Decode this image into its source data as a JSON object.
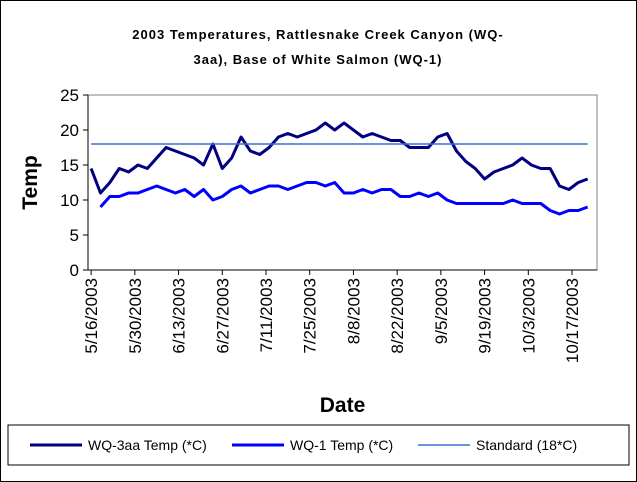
{
  "chart_data": {
    "type": "line",
    "title": "2003 Temperatures, Rattlesnake Creek Canyon (WQ-3aa), Base of White Salmon (WQ-1)",
    "x_label": "Date",
    "y_label": "Temp",
    "x": [
      "5/16/2003",
      "5/19/2003",
      "5/22/2003",
      "5/25/2003",
      "5/28/2003",
      "5/31/2003",
      "6/3/2003",
      "6/6/2003",
      "6/9/2003",
      "6/12/2003",
      "6/15/2003",
      "6/18/2003",
      "6/21/2003",
      "6/24/2003",
      "6/27/2003",
      "6/30/2003",
      "7/3/2003",
      "7/6/2003",
      "7/9/2003",
      "7/12/2003",
      "7/15/2003",
      "7/18/2003",
      "7/21/2003",
      "7/24/2003",
      "7/27/2003",
      "7/30/2003",
      "8/2/2003",
      "8/5/2003",
      "8/8/2003",
      "8/11/2003",
      "8/14/2003",
      "8/17/2003",
      "8/20/2003",
      "8/23/2003",
      "8/26/2003",
      "8/29/2003",
      "9/1/2003",
      "9/4/2003",
      "9/7/2003",
      "9/10/2003",
      "9/13/2003",
      "9/16/2003",
      "9/19/2003",
      "9/22/2003",
      "9/25/2003",
      "9/28/2003",
      "10/1/2003",
      "10/4/2003",
      "10/7/2003",
      "10/10/2003",
      "10/13/2003",
      "10/16/2003",
      "10/19/2003",
      "10/22/2003"
    ],
    "series": [
      {
        "name": "WQ-3aa Temp (*C)",
        "color": "#000080",
        "width": 3,
        "values": [
          14.5,
          11,
          12.5,
          14.5,
          14,
          15,
          14.5,
          16,
          17.5,
          17,
          16.5,
          16,
          15,
          18,
          14.5,
          16,
          19,
          17,
          16.5,
          17.5,
          19,
          19.5,
          19,
          19.5,
          20,
          21,
          20,
          21,
          20,
          19,
          19.5,
          19,
          18.5,
          18.5,
          17.5,
          17.5,
          17.5,
          19,
          19.5,
          17,
          15.5,
          14.5,
          13,
          14,
          14.5,
          15,
          16,
          15,
          14.5,
          14.5,
          12,
          11.5,
          12.5,
          13
        ]
      },
      {
        "name": "WQ-1 Temp (*C)",
        "color": "#0000ff",
        "width": 3,
        "values": [
          null,
          9,
          10.5,
          10.5,
          11,
          11,
          11.5,
          12,
          11.5,
          11,
          11.5,
          10.5,
          11.5,
          10,
          10.5,
          11.5,
          12,
          11,
          11.5,
          12,
          12,
          11.5,
          12,
          12.5,
          12.5,
          12,
          12.5,
          11,
          11,
          11.5,
          11,
          11.5,
          11.5,
          10.5,
          10.5,
          11,
          10.5,
          11,
          10,
          9.5,
          9.5,
          9.5,
          9.5,
          9.5,
          9.5,
          10,
          9.5,
          9.5,
          9.5,
          8.5,
          8,
          8.5,
          8.5,
          9
        ]
      },
      {
        "name": "Standard (18*C)",
        "color": "#3a6fd0",
        "width": 1.5,
        "values": [
          18,
          18,
          18,
          18,
          18,
          18,
          18,
          18,
          18,
          18,
          18,
          18,
          18,
          18,
          18,
          18,
          18,
          18,
          18,
          18,
          18,
          18,
          18,
          18,
          18,
          18,
          18,
          18,
          18,
          18,
          18,
          18,
          18,
          18,
          18,
          18,
          18,
          18,
          18,
          18,
          18,
          18,
          18,
          18,
          18,
          18,
          18,
          18,
          18,
          18,
          18,
          18,
          18,
          18
        ]
      }
    ],
    "xlim": [
      "5/15/2003",
      "10/25/2003"
    ],
    "xticks": [
      "5/16/2003",
      "5/30/2003",
      "6/13/2003",
      "6/27/2003",
      "7/11/2003",
      "7/25/2003",
      "8/8/2003",
      "8/22/2003",
      "9/5/2003",
      "9/19/2003",
      "10/3/2003",
      "10/17/2003"
    ],
    "ylim": [
      0,
      25
    ],
    "yticks": [
      0,
      5,
      10,
      15,
      20,
      25
    ],
    "grid": false,
    "legend": "bottom"
  }
}
